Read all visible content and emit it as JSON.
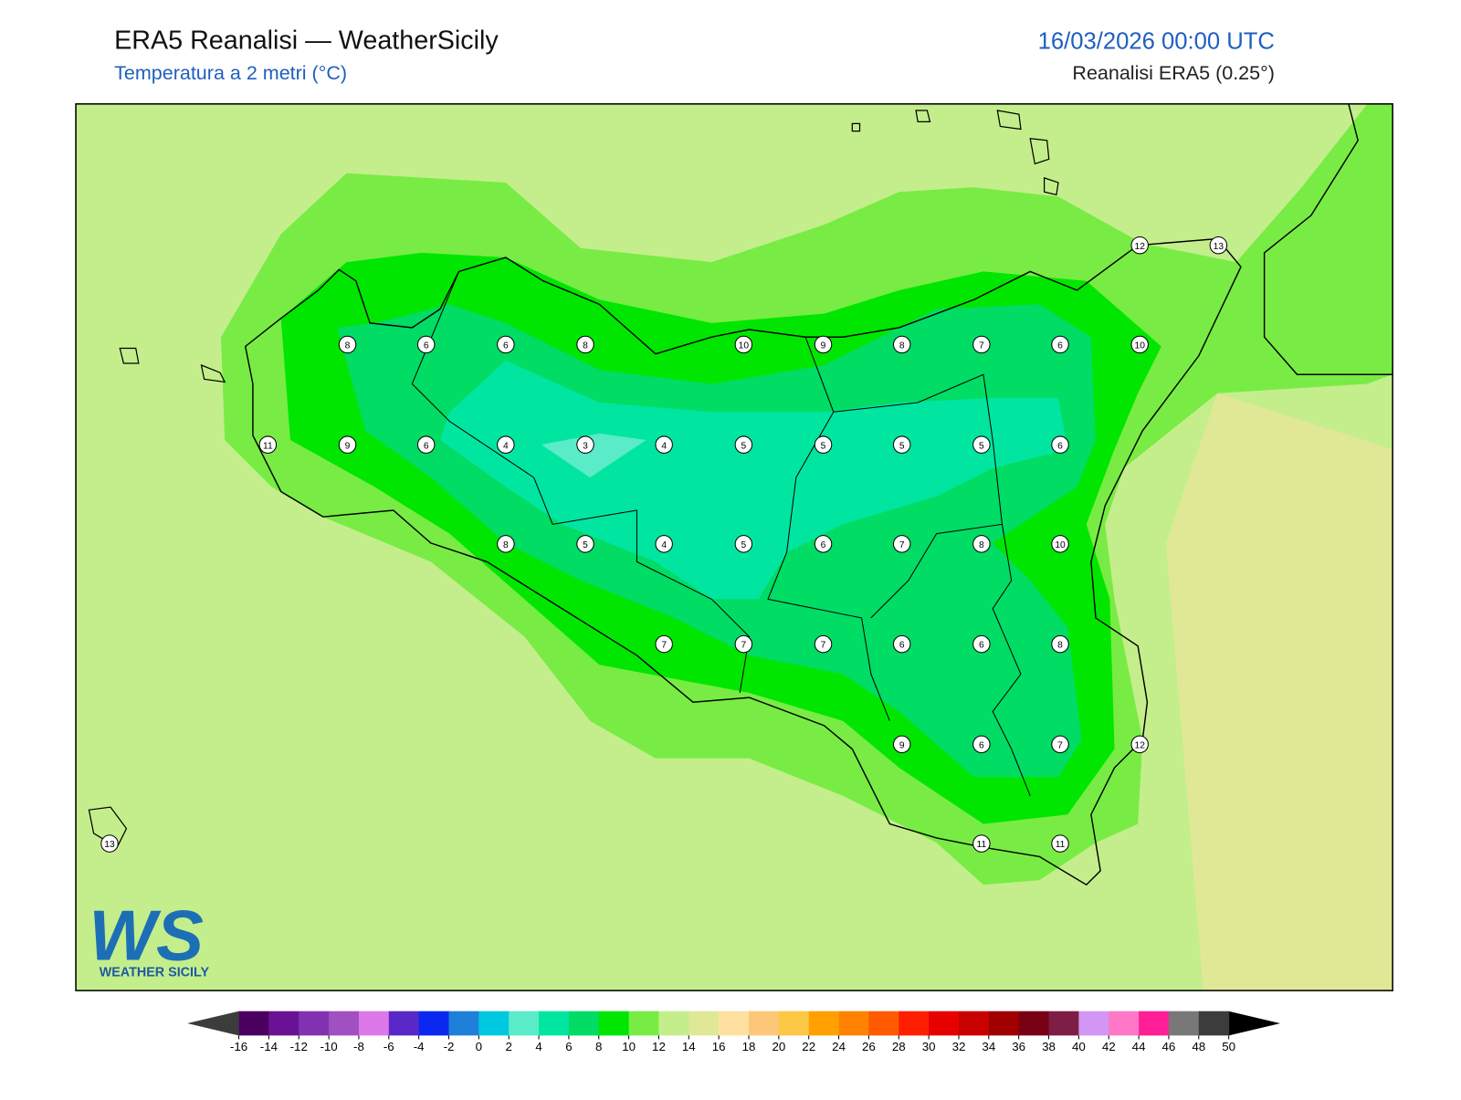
{
  "header": {
    "title": "ERA5 Reanalisi — WeatherSicily",
    "subtitle": "Temperatura a 2 metri (°C)",
    "datetime": "16/03/2026 00:00 UTC",
    "source": "Reanalisi ERA5 (0.25°)"
  },
  "stations": [
    12,
    13,
    8,
    6,
    6,
    8,
    10,
    9,
    8,
    7,
    6,
    10,
    11,
    9,
    6,
    4,
    3,
    4,
    5,
    5,
    5,
    5,
    6,
    8,
    5,
    4,
    5,
    6,
    7,
    8,
    10,
    7,
    7,
    7,
    6,
    6,
    8,
    9,
    6,
    7,
    12,
    13,
    11,
    11
  ],
  "logo": {
    "mark": "WS",
    "text": "WEATHER SICILY"
  },
  "colorbar": {
    "ticks": [
      -16,
      -14,
      -12,
      -10,
      -8,
      -6,
      -4,
      -2,
      0,
      2,
      4,
      6,
      8,
      10,
      12,
      14,
      16,
      18,
      20,
      22,
      24,
      26,
      28,
      30,
      32,
      34,
      36,
      38,
      40,
      42,
      44,
      46,
      48,
      50
    ],
    "colors": [
      "#4b0060",
      "#6a1296",
      "#8132b0",
      "#a050c0",
      "#dc78e8",
      "#5a28c8",
      "#0a28f0",
      "#1e80d8",
      "#00c8e0",
      "#5aebc8",
      "#00e6a0",
      "#00dc64",
      "#00e600",
      "#78ec44",
      "#c4ee8c",
      "#e0e896",
      "#ffe0a0",
      "#fcc878",
      "#fcc846",
      "#ffa000",
      "#ff8200",
      "#ff5a00",
      "#ff1e00",
      "#e60000",
      "#c80000",
      "#a00000",
      "#780014",
      "#7d1e46",
      "#d296f5",
      "#ff78c8",
      "#ff1e96",
      "#787878",
      "#3c3c3c"
    ],
    "under_color": "#3c3c3c",
    "over_color": "#000000"
  }
}
